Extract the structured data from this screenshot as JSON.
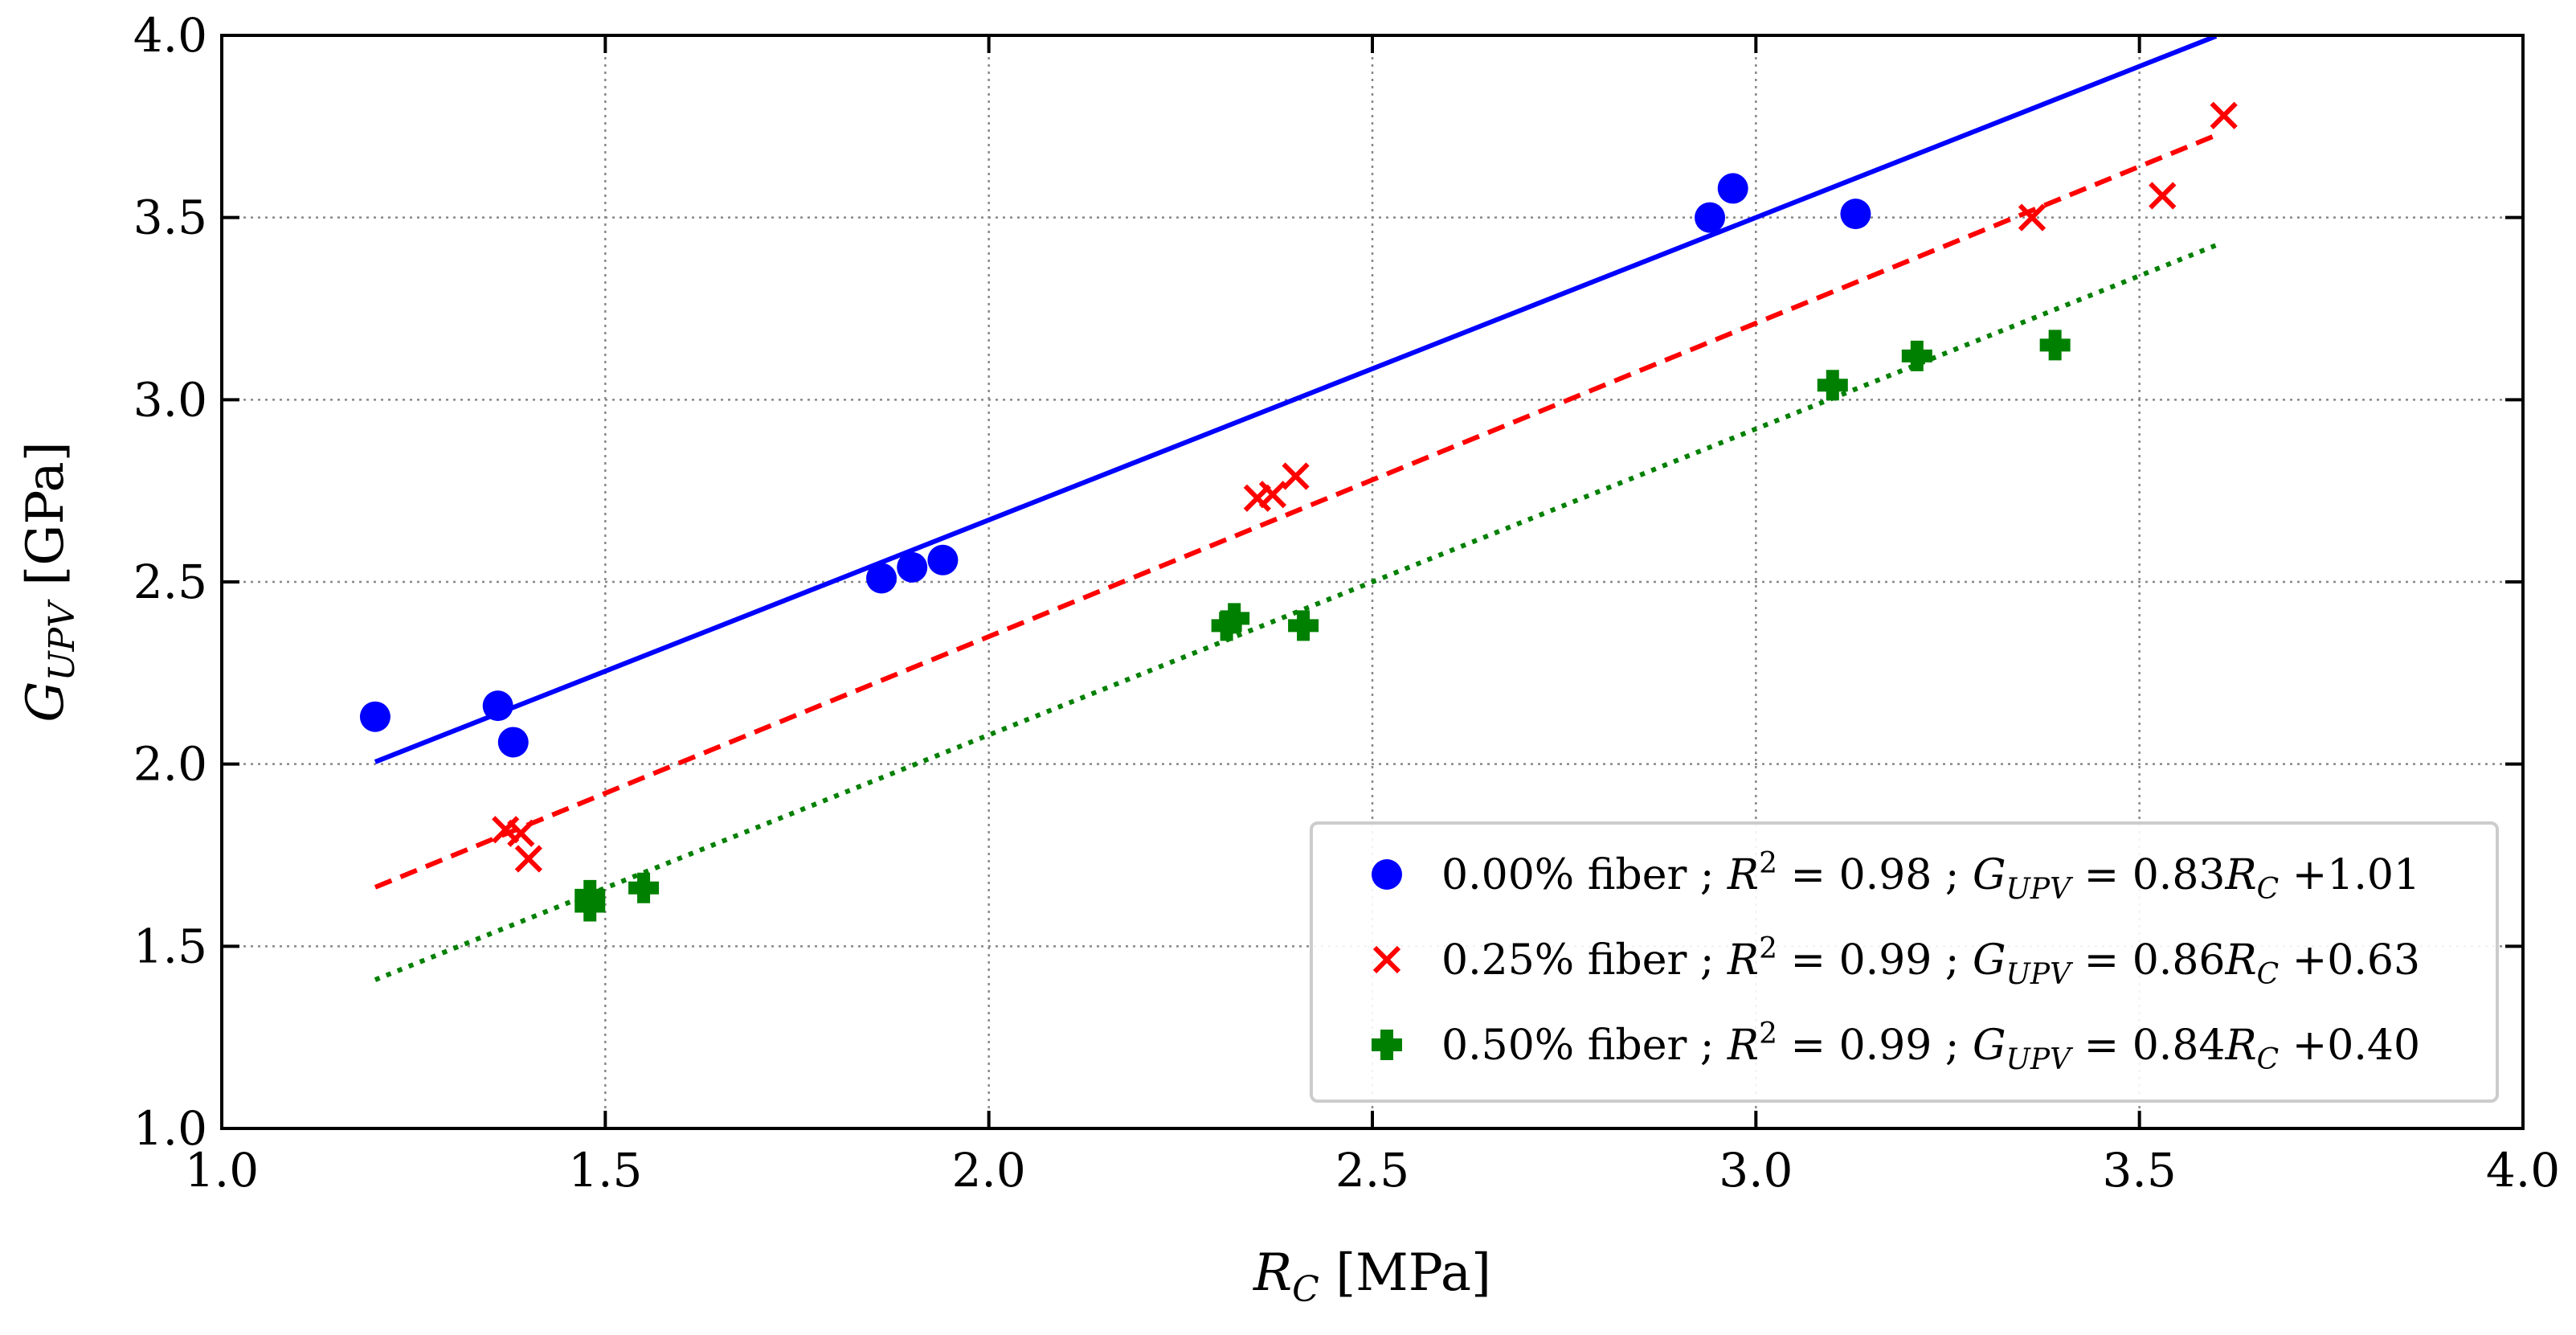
{
  "chart_data": {
    "type": "scatter",
    "title": "",
    "xlabel": {
      "symbol": "R",
      "sub": "C",
      "unit": "[MPa]"
    },
    "ylabel": {
      "symbol": "G",
      "sub": "UPV",
      "unit": "[GPa]"
    },
    "xlim": [
      1.0,
      4.0
    ],
    "ylim": [
      1.0,
      4.0
    ],
    "xticks": [
      1.0,
      1.5,
      2.0,
      2.5,
      3.0,
      3.5,
      4.0
    ],
    "yticks": [
      1.0,
      1.5,
      2.0,
      2.5,
      3.0,
      3.5,
      4.0
    ],
    "xtick_labels": [
      "1.0",
      "1.5",
      "2.0",
      "2.5",
      "3.0",
      "3.5",
      "4.0"
    ],
    "ytick_labels": [
      "1.0",
      "1.5",
      "2.0",
      "2.5",
      "3.0",
      "3.5",
      "4.0"
    ],
    "grid": true,
    "legend_position": "bottom-right",
    "series": [
      {
        "name": "0.00% fiber",
        "label_prefix": "0.00% fiber ; ",
        "r2_value": "= 0.98",
        "eq_value": "= 0.83",
        "eq_intercept": "+1.01",
        "color": "#0000ff",
        "marker": "circle",
        "line_style": "solid",
        "fit": {
          "slope": 0.83,
          "intercept": 1.01,
          "x_range": [
            1.2,
            3.6
          ]
        },
        "points": [
          [
            1.2,
            2.13
          ],
          [
            1.36,
            2.16
          ],
          [
            1.38,
            2.06
          ],
          [
            1.86,
            2.51
          ],
          [
            1.9,
            2.54
          ],
          [
            1.94,
            2.56
          ],
          [
            2.94,
            3.5
          ],
          [
            2.97,
            3.58
          ],
          [
            3.13,
            3.51
          ]
        ]
      },
      {
        "name": "0.25% fiber",
        "label_prefix": "0.25% fiber ; ",
        "r2_value": "= 0.99",
        "eq_value": "= 0.86",
        "eq_intercept": "+0.63",
        "color": "#ff0000",
        "marker": "x",
        "line_style": "dashed",
        "fit": {
          "slope": 0.86,
          "intercept": 0.63,
          "x_range": [
            1.2,
            3.6
          ]
        },
        "points": [
          [
            1.37,
            1.82
          ],
          [
            1.39,
            1.81
          ],
          [
            1.4,
            1.74
          ],
          [
            2.35,
            2.73
          ],
          [
            2.37,
            2.74
          ],
          [
            2.4,
            2.79
          ],
          [
            3.36,
            3.5
          ],
          [
            3.53,
            3.56
          ],
          [
            3.61,
            3.78
          ]
        ]
      },
      {
        "name": "0.50% fiber",
        "label_prefix": "0.50% fiber ; ",
        "r2_value": "= 0.99",
        "eq_value": "= 0.84",
        "eq_intercept": "+0.40",
        "color": "#008000",
        "marker": "plus",
        "line_style": "dotted",
        "fit": {
          "slope": 0.84,
          "intercept": 0.4,
          "x_range": [
            1.2,
            3.6
          ]
        },
        "points": [
          [
            1.48,
            1.61
          ],
          [
            1.48,
            1.64
          ],
          [
            1.55,
            1.66
          ],
          [
            2.31,
            2.38
          ],
          [
            2.32,
            2.4
          ],
          [
            2.41,
            2.38
          ],
          [
            3.1,
            3.04
          ],
          [
            3.21,
            3.12
          ],
          [
            3.39,
            3.15
          ]
        ]
      }
    ]
  }
}
